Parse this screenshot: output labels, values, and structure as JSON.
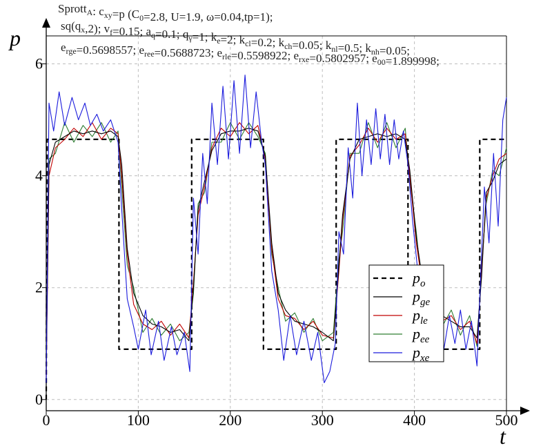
{
  "chart_data": {
    "type": "line",
    "header_lines": [
      "Sprott_A: c_xy=p (C_0=2.8, U=1.9, ω=0.04,tp=1);",
      "sq(q_x,2); v_f=0.15; a_q=0.1; q_γ=1; k_e=2; k_cl=0.2; k_ch=0.05; k_nl=0.5; k_nh=0.05;",
      "e_rge=0.5698557; e_ree=0.5688723; e_rle=0.5598922; e_rxe=0.5802957; e_00=1.899998;"
    ],
    "xlabel": "t",
    "ylabel": "p",
    "xlim": [
      0,
      500
    ],
    "ylim": [
      -0.2,
      6.5
    ],
    "x_ticks": [
      0,
      100,
      200,
      300,
      400,
      500
    ],
    "y_ticks": [
      0,
      2,
      4,
      6
    ],
    "grid": true,
    "legend_position": "center-right",
    "series": [
      {
        "name": "p_o",
        "color": "#000000",
        "style": "dashed",
        "values": [
          [
            0,
            0
          ],
          [
            1,
            4.65
          ],
          [
            79,
            4.65
          ],
          [
            79,
            0.9
          ],
          [
            158,
            0.9
          ],
          [
            158,
            4.65
          ],
          [
            236,
            4.65
          ],
          [
            236,
            0.9
          ],
          [
            315,
            0.9
          ],
          [
            315,
            4.65
          ],
          [
            393,
            4.65
          ],
          [
            393,
            0.9
          ],
          [
            471,
            0.9
          ],
          [
            471,
            4.65
          ],
          [
            500,
            4.65
          ]
        ]
      },
      {
        "name": "p_ge",
        "color": "#000000",
        "style": "solid",
        "values": [
          [
            0,
            0.5
          ],
          [
            3,
            4.2
          ],
          [
            10,
            4.6
          ],
          [
            20,
            4.7
          ],
          [
            30,
            4.8
          ],
          [
            40,
            4.75
          ],
          [
            50,
            4.8
          ],
          [
            60,
            4.75
          ],
          [
            70,
            4.8
          ],
          [
            78,
            4.7
          ],
          [
            82,
            4.2
          ],
          [
            88,
            2.7
          ],
          [
            95,
            1.9
          ],
          [
            105,
            1.5
          ],
          [
            115,
            1.35
          ],
          [
            125,
            1.3
          ],
          [
            135,
            1.2
          ],
          [
            145,
            1.25
          ],
          [
            155,
            1.05
          ],
          [
            160,
            2.0
          ],
          [
            165,
            3.4
          ],
          [
            172,
            3.9
          ],
          [
            180,
            4.45
          ],
          [
            190,
            4.75
          ],
          [
            200,
            4.8
          ],
          [
            210,
            4.8
          ],
          [
            220,
            4.85
          ],
          [
            230,
            4.8
          ],
          [
            238,
            4.35
          ],
          [
            245,
            2.8
          ],
          [
            252,
            1.9
          ],
          [
            260,
            1.6
          ],
          [
            270,
            1.4
          ],
          [
            280,
            1.35
          ],
          [
            290,
            1.3
          ],
          [
            300,
            1.2
          ],
          [
            312,
            1.05
          ],
          [
            318,
            2.4
          ],
          [
            322,
            3.3
          ],
          [
            330,
            4.3
          ],
          [
            340,
            4.65
          ],
          [
            350,
            4.7
          ],
          [
            360,
            4.75
          ],
          [
            370,
            4.7
          ],
          [
            380,
            4.75
          ],
          [
            390,
            4.65
          ],
          [
            395,
            4.1
          ],
          [
            402,
            2.9
          ],
          [
            410,
            2.0
          ],
          [
            420,
            1.55
          ],
          [
            430,
            1.5
          ],
          [
            440,
            1.4
          ],
          [
            450,
            1.3
          ],
          [
            460,
            1.3
          ],
          [
            468,
            1.1
          ],
          [
            473,
            2.2
          ],
          [
            478,
            3.7
          ],
          [
            485,
            3.9
          ],
          [
            492,
            4.2
          ],
          [
            500,
            4.3
          ]
        ]
      },
      {
        "name": "p_le",
        "color": "#c00000",
        "style": "solid",
        "values": [
          [
            0,
            0.4
          ],
          [
            3,
            4.0
          ],
          [
            10,
            4.5
          ],
          [
            20,
            4.65
          ],
          [
            30,
            4.85
          ],
          [
            40,
            4.7
          ],
          [
            50,
            4.95
          ],
          [
            60,
            4.65
          ],
          [
            70,
            4.85
          ],
          [
            78,
            4.75
          ],
          [
            82,
            4.0
          ],
          [
            88,
            2.6
          ],
          [
            95,
            1.7
          ],
          [
            105,
            1.35
          ],
          [
            115,
            1.25
          ],
          [
            125,
            1.4
          ],
          [
            135,
            1.15
          ],
          [
            145,
            1.35
          ],
          [
            155,
            1.1
          ],
          [
            160,
            2.1
          ],
          [
            165,
            3.3
          ],
          [
            172,
            3.8
          ],
          [
            180,
            4.5
          ],
          [
            190,
            4.85
          ],
          [
            200,
            4.7
          ],
          [
            210,
            4.95
          ],
          [
            220,
            4.75
          ],
          [
            230,
            4.9
          ],
          [
            238,
            4.3
          ],
          [
            245,
            2.7
          ],
          [
            252,
            1.8
          ],
          [
            260,
            1.5
          ],
          [
            270,
            1.45
          ],
          [
            280,
            1.25
          ],
          [
            290,
            1.4
          ],
          [
            300,
            1.15
          ],
          [
            312,
            1.1
          ],
          [
            318,
            2.3
          ],
          [
            322,
            3.2
          ],
          [
            330,
            4.35
          ],
          [
            340,
            4.55
          ],
          [
            350,
            4.85
          ],
          [
            360,
            4.6
          ],
          [
            370,
            4.85
          ],
          [
            380,
            4.65
          ],
          [
            390,
            4.75
          ],
          [
            395,
            4.0
          ],
          [
            402,
            2.8
          ],
          [
            410,
            1.9
          ],
          [
            420,
            1.65
          ],
          [
            430,
            1.4
          ],
          [
            440,
            1.5
          ],
          [
            450,
            1.25
          ],
          [
            460,
            1.4
          ],
          [
            468,
            1.0
          ],
          [
            473,
            2.3
          ],
          [
            478,
            3.6
          ],
          [
            485,
            4.0
          ],
          [
            492,
            4.3
          ],
          [
            500,
            4.4
          ]
        ]
      },
      {
        "name": "p_ee",
        "color": "#2e7d32",
        "style": "solid",
        "values": [
          [
            0,
            0.6
          ],
          [
            3,
            4.3
          ],
          [
            10,
            4.4
          ],
          [
            20,
            4.95
          ],
          [
            30,
            4.6
          ],
          [
            40,
            4.9
          ],
          [
            50,
            4.7
          ],
          [
            60,
            4.95
          ],
          [
            70,
            4.6
          ],
          [
            78,
            4.8
          ],
          [
            82,
            3.8
          ],
          [
            88,
            2.4
          ],
          [
            95,
            2.0
          ],
          [
            105,
            1.2
          ],
          [
            115,
            1.45
          ],
          [
            125,
            1.15
          ],
          [
            135,
            1.35
          ],
          [
            145,
            1.05
          ],
          [
            155,
            1.2
          ],
          [
            160,
            1.9
          ],
          [
            165,
            3.5
          ],
          [
            172,
            3.7
          ],
          [
            180,
            4.6
          ],
          [
            190,
            4.6
          ],
          [
            200,
            4.95
          ],
          [
            210,
            4.65
          ],
          [
            220,
            4.95
          ],
          [
            230,
            4.7
          ],
          [
            238,
            4.4
          ],
          [
            245,
            2.6
          ],
          [
            252,
            2.0
          ],
          [
            260,
            1.4
          ],
          [
            270,
            1.55
          ],
          [
            280,
            1.2
          ],
          [
            290,
            1.45
          ],
          [
            300,
            1.05
          ],
          [
            312,
            1.2
          ],
          [
            318,
            2.5
          ],
          [
            322,
            3.0
          ],
          [
            330,
            4.4
          ],
          [
            340,
            4.4
          ],
          [
            350,
            4.95
          ],
          [
            360,
            4.5
          ],
          [
            370,
            4.95
          ],
          [
            380,
            4.5
          ],
          [
            390,
            4.85
          ],
          [
            395,
            3.9
          ],
          [
            402,
            3.0
          ],
          [
            410,
            1.7
          ],
          [
            420,
            1.75
          ],
          [
            430,
            1.3
          ],
          [
            440,
            1.6
          ],
          [
            450,
            1.15
          ],
          [
            460,
            1.5
          ],
          [
            468,
            0.95
          ],
          [
            473,
            2.4
          ],
          [
            478,
            3.5
          ],
          [
            485,
            4.1
          ],
          [
            492,
            4.0
          ],
          [
            500,
            4.5
          ]
        ]
      },
      {
        "name": "p_xe",
        "color": "#1a1adc",
        "style": "solid",
        "values": [
          [
            0,
            0.3
          ],
          [
            3,
            5.3
          ],
          [
            8,
            4.8
          ],
          [
            14,
            5.5
          ],
          [
            20,
            4.9
          ],
          [
            28,
            5.4
          ],
          [
            35,
            5.0
          ],
          [
            42,
            5.3
          ],
          [
            48,
            4.9
          ],
          [
            55,
            5.1
          ],
          [
            62,
            4.8
          ],
          [
            70,
            5.0
          ],
          [
            78,
            4.6
          ],
          [
            82,
            3.4
          ],
          [
            88,
            1.8
          ],
          [
            95,
            1.3
          ],
          [
            100,
            0.9
          ],
          [
            108,
            1.6
          ],
          [
            114,
            0.8
          ],
          [
            122,
            1.4
          ],
          [
            128,
            0.7
          ],
          [
            136,
            1.3
          ],
          [
            142,
            0.8
          ],
          [
            150,
            1.2
          ],
          [
            156,
            0.5
          ],
          [
            160,
            3.6
          ],
          [
            165,
            2.6
          ],
          [
            170,
            4.4
          ],
          [
            175,
            3.5
          ],
          [
            180,
            5.3
          ],
          [
            186,
            4.2
          ],
          [
            192,
            5.6
          ],
          [
            198,
            4.3
          ],
          [
            204,
            5.7
          ],
          [
            210,
            4.4
          ],
          [
            216,
            5.8
          ],
          [
            222,
            4.5
          ],
          [
            228,
            5.5
          ],
          [
            234,
            4.6
          ],
          [
            238,
            4.2
          ],
          [
            245,
            2.3
          ],
          [
            252,
            1.6
          ],
          [
            258,
            0.7
          ],
          [
            265,
            1.5
          ],
          [
            272,
            0.8
          ],
          [
            280,
            1.4
          ],
          [
            288,
            0.7
          ],
          [
            295,
            1.2
          ],
          [
            302,
            0.3
          ],
          [
            308,
            0.5
          ],
          [
            314,
            1.0
          ],
          [
            318,
            3.0
          ],
          [
            323,
            2.6
          ],
          [
            328,
            4.5
          ],
          [
            333,
            3.6
          ],
          [
            338,
            5.3
          ],
          [
            343,
            4.0
          ],
          [
            348,
            5.0
          ],
          [
            353,
            4.2
          ],
          [
            358,
            5.2
          ],
          [
            363,
            4.3
          ],
          [
            368,
            5.1
          ],
          [
            373,
            4.2
          ],
          [
            378,
            5.0
          ],
          [
            383,
            4.3
          ],
          [
            388,
            4.8
          ],
          [
            393,
            4.2
          ],
          [
            398,
            3.2
          ],
          [
            403,
            2.4
          ],
          [
            408,
            1.4
          ],
          [
            414,
            1.9
          ],
          [
            420,
            1.0
          ],
          [
            426,
            1.7
          ],
          [
            432,
            0.9
          ],
          [
            438,
            1.5
          ],
          [
            444,
            1.0
          ],
          [
            450,
            1.6
          ],
          [
            456,
            0.9
          ],
          [
            462,
            1.4
          ],
          [
            468,
            0.6
          ],
          [
            472,
            2.2
          ],
          [
            476,
            3.8
          ],
          [
            481,
            2.8
          ],
          [
            486,
            4.4
          ],
          [
            491,
            3.1
          ],
          [
            496,
            5.0
          ],
          [
            500,
            5.4
          ]
        ]
      }
    ]
  }
}
